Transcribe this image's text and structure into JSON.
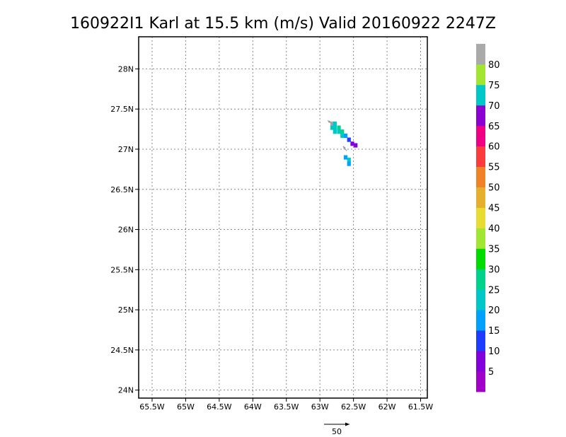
{
  "chart_data": {
    "type": "heatmap",
    "title": "160922I1 Karl at 15.5 km (m/s) Valid 20160922 2247Z",
    "x_ticks": [
      "65.5W",
      "65W",
      "64.5W",
      "64W",
      "63.5W",
      "63W",
      "62.5W",
      "62W",
      "61.5W"
    ],
    "x_values": [
      -65.5,
      -65,
      -64.5,
      -64,
      -63.5,
      -63,
      -62.5,
      -62,
      -61.5
    ],
    "y_ticks": [
      "24N",
      "24.5N",
      "25N",
      "25.5N",
      "26N",
      "26.5N",
      "27N",
      "27.5N",
      "28N"
    ],
    "y_values": [
      24,
      24.5,
      25,
      25.5,
      26,
      26.5,
      27,
      27.5,
      28
    ],
    "xlim": [
      -65.7,
      -61.4
    ],
    "ylim": [
      23.9,
      28.4
    ],
    "grid": true,
    "colorbar": {
      "labels": [
        "5",
        "10",
        "15",
        "20",
        "25",
        "30",
        "35",
        "40",
        "45",
        "50",
        "55",
        "60",
        "65",
        "70",
        "75",
        "80"
      ],
      "colors": [
        "#a000c8",
        "#8200dc",
        "#1e3cff",
        "#00a0ff",
        "#00c8c8",
        "#00d28c",
        "#00dc00",
        "#a0e632",
        "#e6dc32",
        "#e6af2d",
        "#f08228",
        "#fa3c3c",
        "#f00082",
        "#8c00d2",
        "#00c8c8",
        "#a0e632",
        "#aaaaaa"
      ]
    },
    "cells": [
      {
        "lon": -62.82,
        "lat": 27.32,
        "v": 80
      },
      {
        "lon": -62.78,
        "lat": 27.32,
        "v": 22
      },
      {
        "lon": -62.82,
        "lat": 27.27,
        "v": 22
      },
      {
        "lon": -62.78,
        "lat": 27.27,
        "v": 22
      },
      {
        "lon": -62.72,
        "lat": 27.27,
        "v": 25
      },
      {
        "lon": -62.78,
        "lat": 27.22,
        "v": 22
      },
      {
        "lon": -62.72,
        "lat": 27.22,
        "v": 22
      },
      {
        "lon": -62.67,
        "lat": 27.22,
        "v": 25
      },
      {
        "lon": -62.67,
        "lat": 27.17,
        "v": 22
      },
      {
        "lon": -62.62,
        "lat": 27.17,
        "v": 18
      },
      {
        "lon": -62.57,
        "lat": 27.12,
        "v": 10
      },
      {
        "lon": -62.52,
        "lat": 27.07,
        "v": 8
      },
      {
        "lon": -62.47,
        "lat": 27.05,
        "v": 8
      },
      {
        "lon": -62.62,
        "lat": 26.9,
        "v": 18
      },
      {
        "lon": -62.57,
        "lat": 26.87,
        "v": 22
      },
      {
        "lon": -62.57,
        "lat": 26.82,
        "v": 18
      }
    ],
    "vectors": [
      {
        "lon": -62.8,
        "lat": 27.3,
        "u": -6,
        "v": 5
      },
      {
        "lon": -62.6,
        "lat": 26.98,
        "u": -4,
        "v": 5
      }
    ],
    "reference_vector": {
      "label": "50",
      "value": 50
    }
  }
}
